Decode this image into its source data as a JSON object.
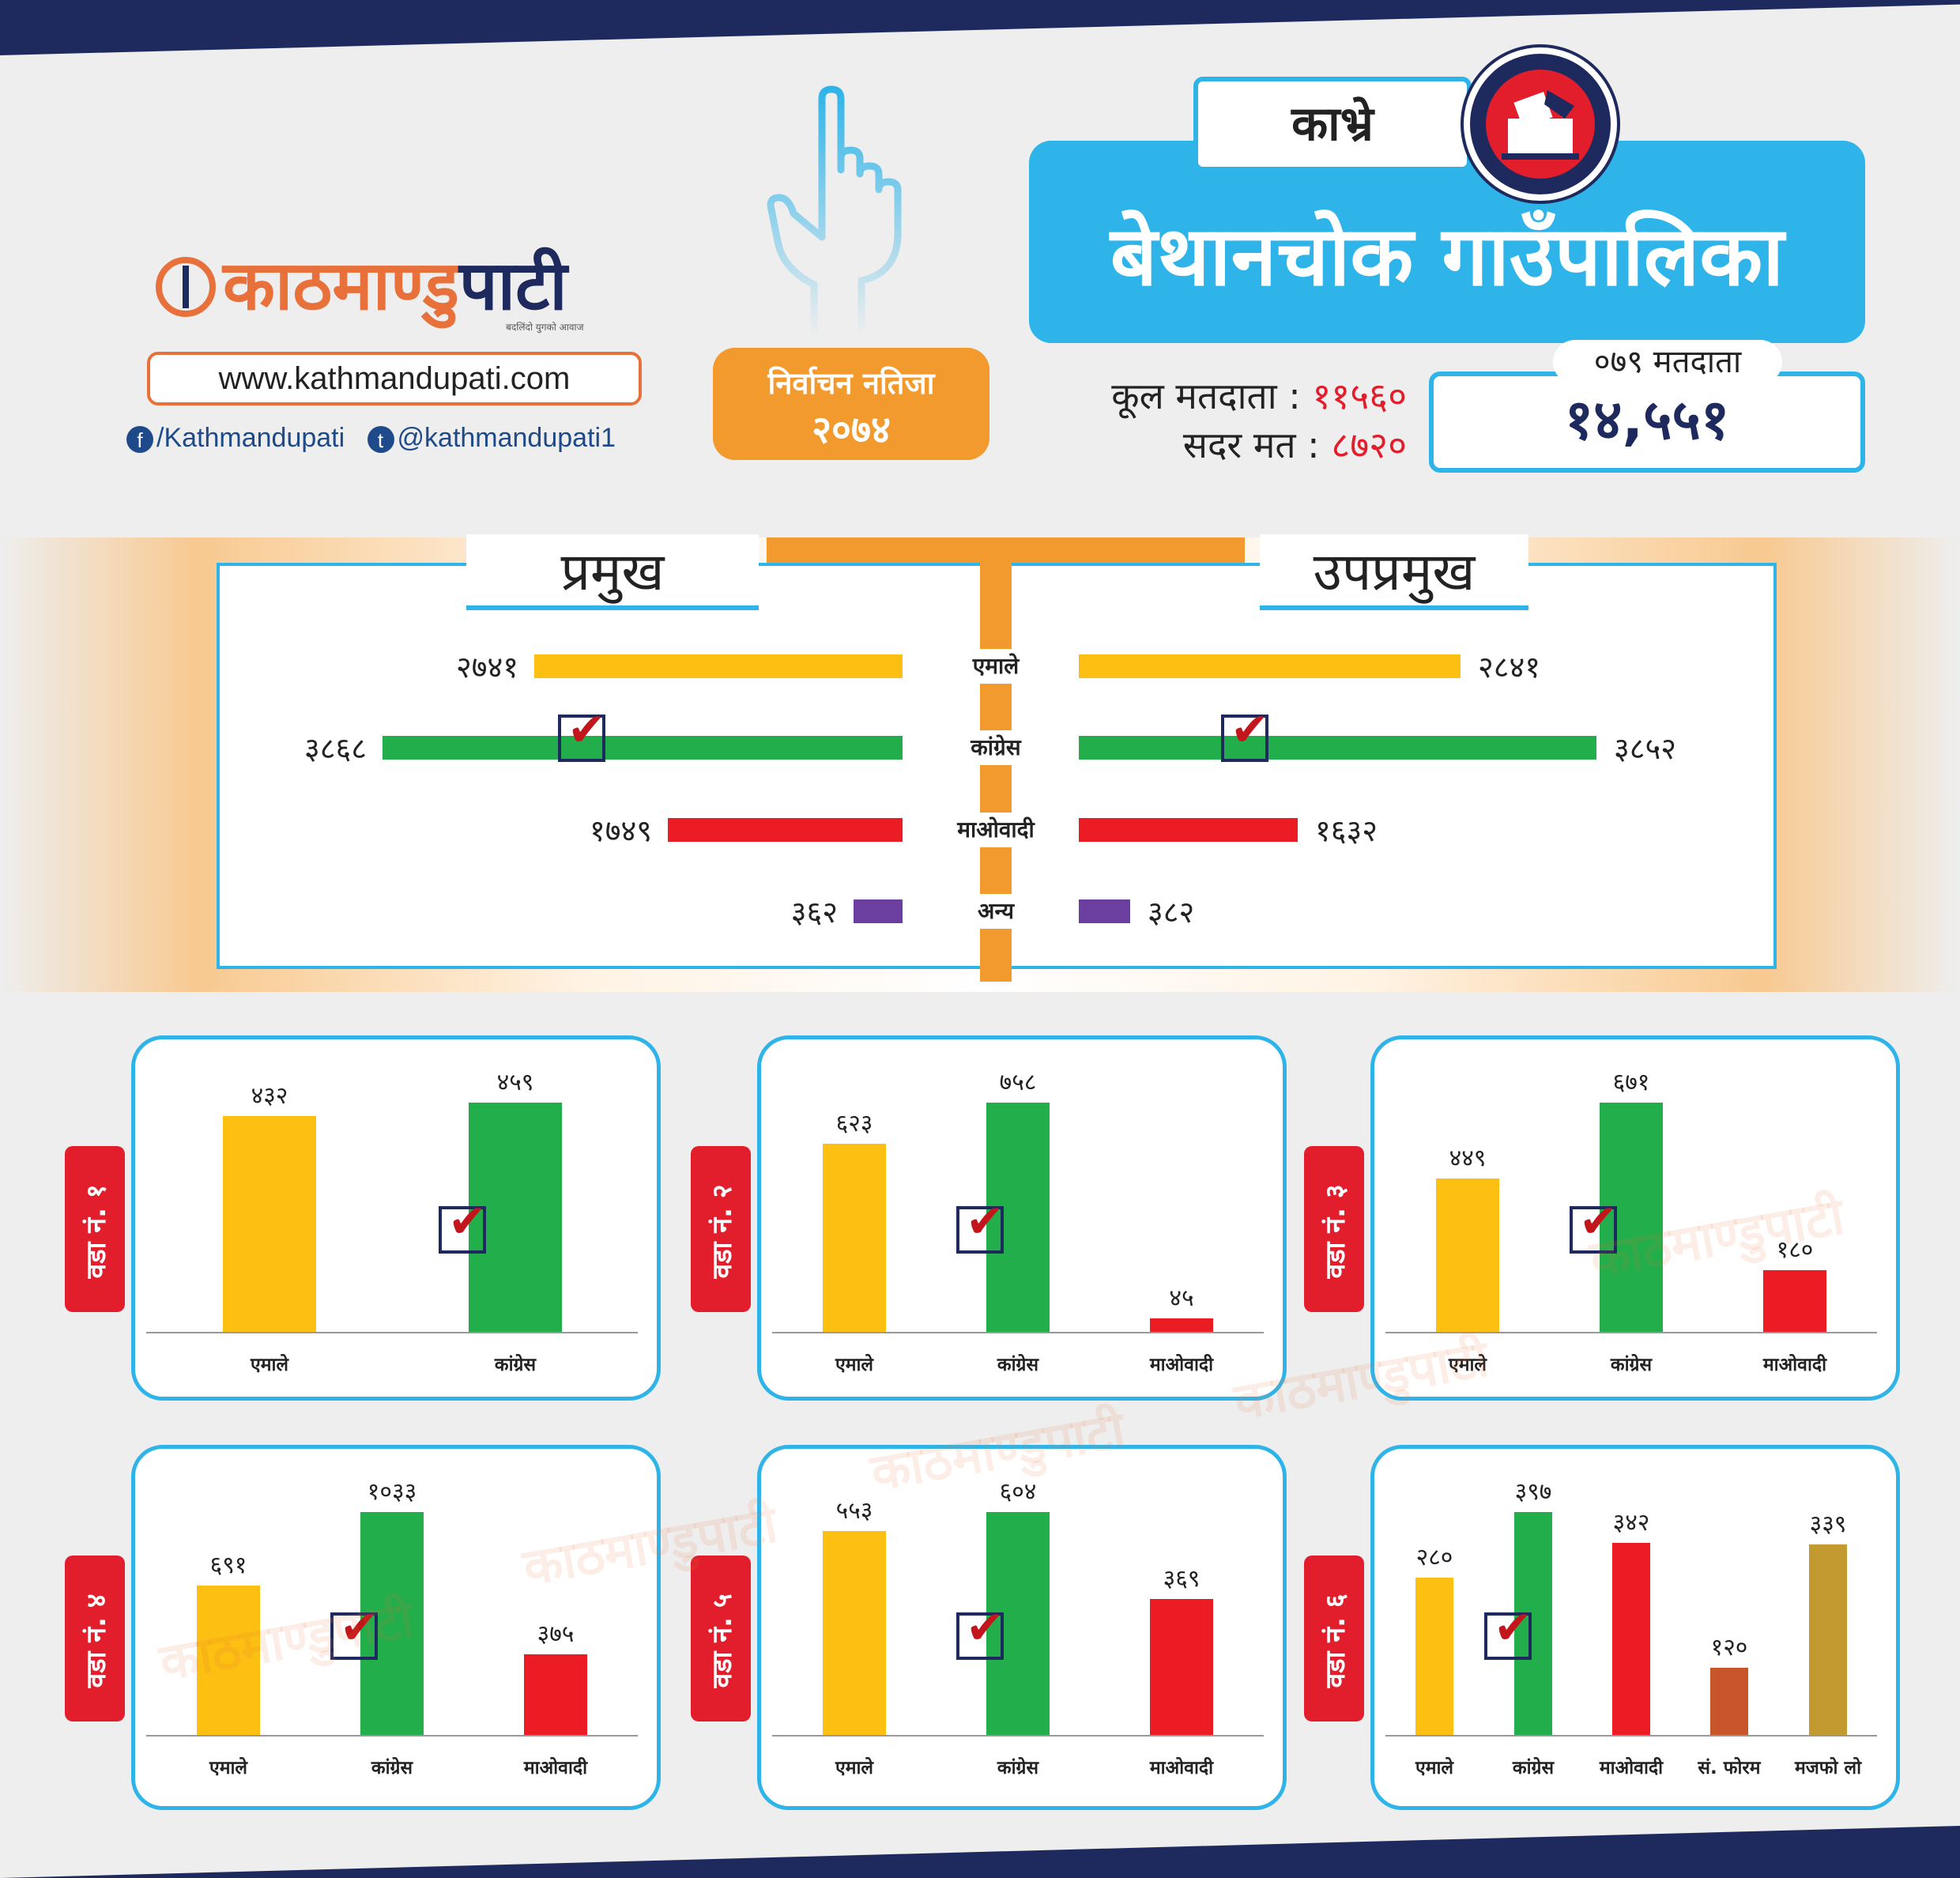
{
  "brand": {
    "name_a": "काठमाण्डु",
    "name_b": "पाटी",
    "tagline": "बदलिंदो युगको आवाज",
    "url": "www.kathmandupati.com",
    "facebook": "/Kathmandupati",
    "twitter": "@kathmandupati1",
    "watermark": "काठमाण्डुपाटी"
  },
  "header": {
    "badge_line1": "निर्वाचन नतिजा",
    "badge_line2": "२०७४",
    "district": "काभ्रे",
    "municipality": "बेथानचोक गाउँपालिका",
    "total_voters_label": "कूल मतदाता :",
    "total_voters": "११५६०",
    "valid_votes_label": "सदर मत :",
    "valid_votes": "८७२०",
    "voters_079_label": "०७९ मतदाता",
    "voters_079": "१४,५५१"
  },
  "colors": {
    "emale": "#fcbf12",
    "congress": "#22ae4b",
    "maoist": "#ec1c24",
    "other": "#6b3fa0",
    "forum": "#c8552a",
    "majafo": "#c39a30",
    "accent": "#2fb4e9",
    "orange": "#f29a2e",
    "navy": "#1e2a5e"
  },
  "chart_data": [
    {
      "type": "bar",
      "orientation": "horizontal",
      "title": "प्रमुख",
      "categories": [
        "एमाले",
        "कांग्रेस",
        "माओवादी",
        "अन्य"
      ],
      "values": [
        2741,
        3868,
        1749,
        362
      ],
      "labels": [
        "२७४१",
        "३८६८",
        "१७४९",
        "३६२"
      ],
      "winner": "कांग्रेस"
    },
    {
      "type": "bar",
      "orientation": "horizontal",
      "title": "उपप्रमुख",
      "categories": [
        "एमाले",
        "कांग्रेस",
        "माओवादी",
        "अन्य"
      ],
      "values": [
        2841,
        3852,
        1632,
        382
      ],
      "labels": [
        "२८४१",
        "३८५२",
        "१६३२",
        "३८२"
      ],
      "winner": "कांग्रेस"
    },
    {
      "type": "bar",
      "title": "वडा नं. १",
      "categories": [
        "एमाले",
        "कांग्रेस"
      ],
      "values": [
        432,
        459
      ],
      "labels": [
        "४३२",
        "४५९"
      ],
      "winner": "कांग्रेस"
    },
    {
      "type": "bar",
      "title": "वडा नं. २",
      "categories": [
        "एमाले",
        "कांग्रेस",
        "माओवादी"
      ],
      "values": [
        623,
        758,
        45
      ],
      "labels": [
        "६२३",
        "७५८",
        "४५"
      ],
      "winner": "कांग्रेस"
    },
    {
      "type": "bar",
      "title": "वडा नं. ३",
      "categories": [
        "एमाले",
        "कांग्रेस",
        "माओवादी"
      ],
      "values": [
        449,
        671,
        180
      ],
      "labels": [
        "४४९",
        "६७१",
        "१८०"
      ],
      "winner": "कांग्रेस"
    },
    {
      "type": "bar",
      "title": "वडा नं. ४",
      "categories": [
        "एमाले",
        "कांग्रेस",
        "माओवादी"
      ],
      "values": [
        691,
        1033,
        375
      ],
      "labels": [
        "६९१",
        "१०३३",
        "३७५"
      ],
      "winner": "कांग्रेस"
    },
    {
      "type": "bar",
      "title": "वडा नं. ५",
      "categories": [
        "एमाले",
        "कांग्रेस",
        "माओवादी"
      ],
      "values": [
        553,
        604,
        369
      ],
      "labels": [
        "५५३",
        "६०४",
        "३६९"
      ],
      "winner": "कांग्रेस"
    },
    {
      "type": "bar",
      "title": "वडा नं. ६",
      "categories": [
        "एमाले",
        "कांग्रेस",
        "माओवादी",
        "सं. फोरम",
        "मजफो लो"
      ],
      "values": [
        280,
        397,
        342,
        120,
        339
      ],
      "labels": [
        "२८०",
        "३९७",
        "३४२",
        "१२०",
        "३३९"
      ],
      "winner": "कांग्रेस"
    }
  ]
}
